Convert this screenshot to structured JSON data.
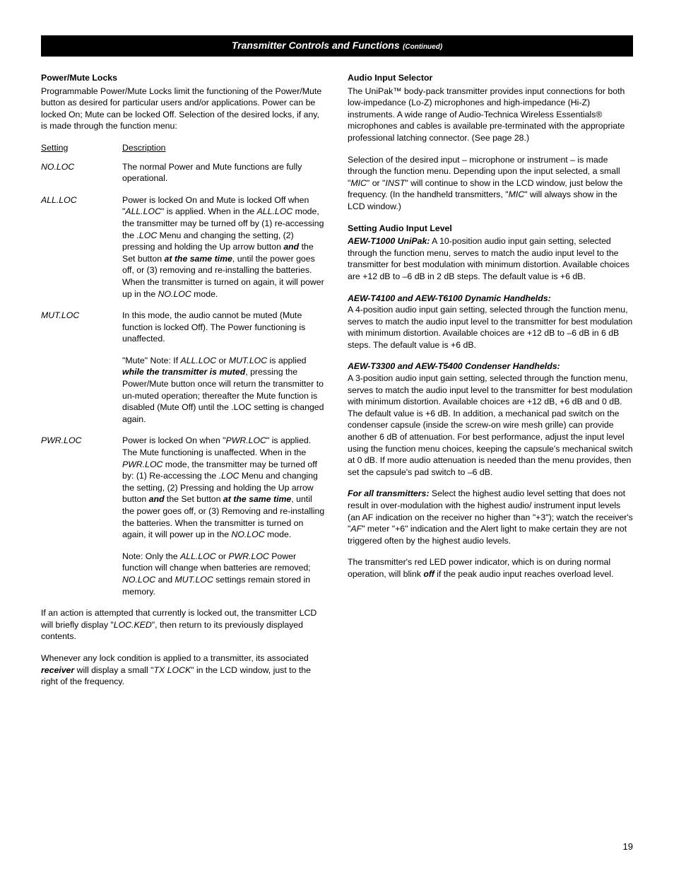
{
  "header": {
    "title": "Transmitter Controls and Functions",
    "continued": "(Continued)"
  },
  "left": {
    "h1": "Power/Mute Locks",
    "intro": "Programmable Power/Mute Locks limit the functioning of the Power/Mute button as desired for particular users and/or applications. Power can be locked On; Mute can be locked Off. Selection of the desired locks, if any, is made through the function menu:",
    "th_setting": "Setting",
    "th_desc": "Description",
    "r1_name": "NO.LOC",
    "r1_desc": "The normal Power and Mute functions are fully operational.",
    "r2_name": "ALL.LOC",
    "r2_a": "Power is locked On and Mute is locked Off when \"",
    "r2_b": "ALL.LOC",
    "r2_c": "\" is applied. When in the ",
    "r2_d": "ALL.LOC",
    "r2_e": " mode, the transmitter may be turned off by (1) re-accessing the ",
    "r2_f": ".LOC",
    "r2_g": " Menu and changing the setting, (2) pressing and holding the Up arrow button ",
    "r2_h": "and",
    "r2_i": " the Set button ",
    "r2_j": "at the same time",
    "r2_k": ", until the power goes off, or (3) removing and re-installing the batteries. When the transmitter is turned on again, it will power up in the ",
    "r2_l": "NO.LOC",
    "r2_m": " mode.",
    "r3_name": "MUT.LOC",
    "r3_desc": "In this mode, the audio cannot be muted (Mute function is locked Off). The Power functioning is unaffected.",
    "r3b_a": "\"Mute\" Note: If ",
    "r3b_b": "ALL.LOC",
    "r3b_c": " or ",
    "r3b_d": "MUT.LOC",
    "r3b_e": " is applied ",
    "r3b_f": "while the transmitter is muted",
    "r3b_g": ", pressing the Power/Mute button once will return the transmitter to un-muted operation; thereafter the Mute function is disabled (Mute Off) until the .LOC setting is changed again.",
    "r4_name": "PWR.LOC",
    "r4_a": "Power is locked On when \"",
    "r4_b": "PWR.LOC",
    "r4_c": "\" is applied. The Mute functioning is unaffected. When in the ",
    "r4_d": "PWR.LOC",
    "r4_e": " mode, the transmitter may be turned off by: (1) Re-accessing the ",
    "r4_f": ".LOC",
    "r4_g": " Menu and changing the setting, (2) Pressing and holding the Up arrow button ",
    "r4_h": "and",
    "r4_i": " the Set button ",
    "r4_j": "at the same time",
    "r4_k": ", until the power goes off, or (3) Removing and re-installing the batteries. When the transmitter is turned on again, it will power up in the ",
    "r4_l": "NO.LOC",
    "r4_m": " mode.",
    "r4n_a": "Note: Only the ",
    "r4n_b": "ALL.LOC",
    "r4n_c": " or ",
    "r4n_d": "PWR.LOC",
    "r4n_e": " Power function will change when batteries are removed; ",
    "r4n_f": "NO.LOC",
    "r4n_g": " and ",
    "r4n_h": "MUT.LOC",
    "r4n_i": " settings remain stored in memory.",
    "p2_a": "If an action is attempted that currently is locked out, the transmitter LCD will briefly display \"",
    "p2_b": "LOC.KED",
    "p2_c": "\", then return to its previously displayed contents.",
    "p3_a": "Whenever any lock condition is applied to a transmitter, its associated ",
    "p3_b": "receiver",
    "p3_c": " will display a small \"",
    "p3_d": "TX LOCK",
    "p3_e": "\" in the LCD window, just to the right of the frequency."
  },
  "right": {
    "h1": "Audio Input Selector",
    "p1": "The UniPak™ body-pack transmitter provides input connections for both low-impedance (Lo-Z) microphones and high-impedance (Hi-Z) instruments. A wide range of Audio-Technica Wireless Essentials® microphones and cables is available pre-terminated with the appropriate professional latching connector. (See page 28.)",
    "p2_a": "Selection of the desired input – microphone or instrument – is made through the function menu. Depending upon the input selected, a small \"",
    "p2_b": "MIC",
    "p2_c": "\" or \"",
    "p2_d": "INST",
    "p2_e": "\" will continue to show in the LCD window, just below the frequency. (In the handheld transmitters, \"",
    "p2_f": "MIC",
    "p2_g": "\" will always show in the LCD window.)",
    "h2": "Setting Audio Input Level",
    "p3_a": "AEW-T1000 UniPak:",
    "p3_b": " A 10-position audio input gain setting, selected through the function menu, serves to match the audio input level to the transmitter for best modulation with minimum distortion. Available choices are +12 dB to –6 dB in 2 dB steps. The default value is +6 dB.",
    "h3": "AEW-T4100 and AEW-T6100 Dynamic Handhelds:",
    "p4": "A 4-position audio input gain setting, selected through the function menu, serves to match the audio input level to the transmitter for best modulation with minimum distortion. Available choices are +12 dB to –6 dB in 6 dB steps. The default value is +6 dB.",
    "h4": "AEW-T3300 and AEW-T5400 Condenser Handhelds:",
    "p5": "A 3-position audio input gain setting, selected through the function menu, serves to match the audio input level to the transmitter for best modulation with minimum distortion. Available choices are +12 dB, +6 dB and 0 dB. The default value is +6 dB. In addition, a mechanical pad switch on the condenser capsule (inside the screw-on wire mesh grille) can provide another 6 dB of attenuation. For best performance, adjust the input level using the function menu choices, keeping the capsule's mechanical switch at 0 dB. If more audio attenuation is needed than the menu provides, then set the capsule's pad switch to –6 dB.",
    "p6_a": "For all transmitters:",
    "p6_b": " Select the highest audio level setting that does not result in over-modulation with the highest audio/ instrument input levels (an AF indication on the receiver no higher than \"+3\"); watch the receiver's \"",
    "p6_c": "AF",
    "p6_d": "\" meter \"+6\" indication and the Alert light to make certain they are not triggered often by the highest audio levels.",
    "p7_a": "The transmitter's red LED power indicator, which is on during normal operation, will blink ",
    "p7_b": "off",
    "p7_c": " if the peak audio input reaches overload level."
  },
  "page_number": "19"
}
